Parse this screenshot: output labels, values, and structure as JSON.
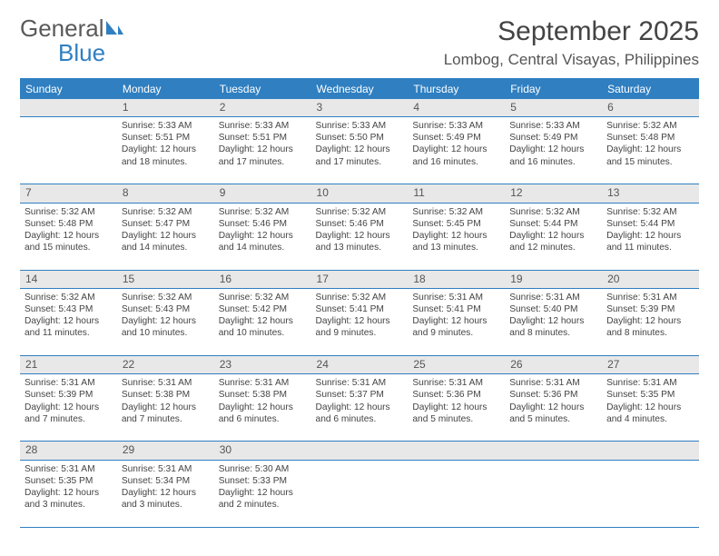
{
  "logo": {
    "word1": "General",
    "word2": "Blue"
  },
  "header": {
    "month_title": "September 2025",
    "location": "Lombog, Central Visayas, Philippines"
  },
  "colors": {
    "header_bg": "#2f7fc1",
    "header_text": "#ffffff",
    "daynum_bg": "#e8e8e8",
    "border": "#2f7fc1",
    "body_text": "#444444"
  },
  "weekdays": [
    "Sunday",
    "Monday",
    "Tuesday",
    "Wednesday",
    "Thursday",
    "Friday",
    "Saturday"
  ],
  "weeks": [
    {
      "nums": [
        "",
        "1",
        "2",
        "3",
        "4",
        "5",
        "6"
      ],
      "cells": [
        null,
        {
          "sunrise": "Sunrise: 5:33 AM",
          "sunset": "Sunset: 5:51 PM",
          "dl1": "Daylight: 12 hours",
          "dl2": "and 18 minutes."
        },
        {
          "sunrise": "Sunrise: 5:33 AM",
          "sunset": "Sunset: 5:51 PM",
          "dl1": "Daylight: 12 hours",
          "dl2": "and 17 minutes."
        },
        {
          "sunrise": "Sunrise: 5:33 AM",
          "sunset": "Sunset: 5:50 PM",
          "dl1": "Daylight: 12 hours",
          "dl2": "and 17 minutes."
        },
        {
          "sunrise": "Sunrise: 5:33 AM",
          "sunset": "Sunset: 5:49 PM",
          "dl1": "Daylight: 12 hours",
          "dl2": "and 16 minutes."
        },
        {
          "sunrise": "Sunrise: 5:33 AM",
          "sunset": "Sunset: 5:49 PM",
          "dl1": "Daylight: 12 hours",
          "dl2": "and 16 minutes."
        },
        {
          "sunrise": "Sunrise: 5:32 AM",
          "sunset": "Sunset: 5:48 PM",
          "dl1": "Daylight: 12 hours",
          "dl2": "and 15 minutes."
        }
      ]
    },
    {
      "nums": [
        "7",
        "8",
        "9",
        "10",
        "11",
        "12",
        "13"
      ],
      "cells": [
        {
          "sunrise": "Sunrise: 5:32 AM",
          "sunset": "Sunset: 5:48 PM",
          "dl1": "Daylight: 12 hours",
          "dl2": "and 15 minutes."
        },
        {
          "sunrise": "Sunrise: 5:32 AM",
          "sunset": "Sunset: 5:47 PM",
          "dl1": "Daylight: 12 hours",
          "dl2": "and 14 minutes."
        },
        {
          "sunrise": "Sunrise: 5:32 AM",
          "sunset": "Sunset: 5:46 PM",
          "dl1": "Daylight: 12 hours",
          "dl2": "and 14 minutes."
        },
        {
          "sunrise": "Sunrise: 5:32 AM",
          "sunset": "Sunset: 5:46 PM",
          "dl1": "Daylight: 12 hours",
          "dl2": "and 13 minutes."
        },
        {
          "sunrise": "Sunrise: 5:32 AM",
          "sunset": "Sunset: 5:45 PM",
          "dl1": "Daylight: 12 hours",
          "dl2": "and 13 minutes."
        },
        {
          "sunrise": "Sunrise: 5:32 AM",
          "sunset": "Sunset: 5:44 PM",
          "dl1": "Daylight: 12 hours",
          "dl2": "and 12 minutes."
        },
        {
          "sunrise": "Sunrise: 5:32 AM",
          "sunset": "Sunset: 5:44 PM",
          "dl1": "Daylight: 12 hours",
          "dl2": "and 11 minutes."
        }
      ]
    },
    {
      "nums": [
        "14",
        "15",
        "16",
        "17",
        "18",
        "19",
        "20"
      ],
      "cells": [
        {
          "sunrise": "Sunrise: 5:32 AM",
          "sunset": "Sunset: 5:43 PM",
          "dl1": "Daylight: 12 hours",
          "dl2": "and 11 minutes."
        },
        {
          "sunrise": "Sunrise: 5:32 AM",
          "sunset": "Sunset: 5:43 PM",
          "dl1": "Daylight: 12 hours",
          "dl2": "and 10 minutes."
        },
        {
          "sunrise": "Sunrise: 5:32 AM",
          "sunset": "Sunset: 5:42 PM",
          "dl1": "Daylight: 12 hours",
          "dl2": "and 10 minutes."
        },
        {
          "sunrise": "Sunrise: 5:32 AM",
          "sunset": "Sunset: 5:41 PM",
          "dl1": "Daylight: 12 hours",
          "dl2": "and 9 minutes."
        },
        {
          "sunrise": "Sunrise: 5:31 AM",
          "sunset": "Sunset: 5:41 PM",
          "dl1": "Daylight: 12 hours",
          "dl2": "and 9 minutes."
        },
        {
          "sunrise": "Sunrise: 5:31 AM",
          "sunset": "Sunset: 5:40 PM",
          "dl1": "Daylight: 12 hours",
          "dl2": "and 8 minutes."
        },
        {
          "sunrise": "Sunrise: 5:31 AM",
          "sunset": "Sunset: 5:39 PM",
          "dl1": "Daylight: 12 hours",
          "dl2": "and 8 minutes."
        }
      ]
    },
    {
      "nums": [
        "21",
        "22",
        "23",
        "24",
        "25",
        "26",
        "27"
      ],
      "cells": [
        {
          "sunrise": "Sunrise: 5:31 AM",
          "sunset": "Sunset: 5:39 PM",
          "dl1": "Daylight: 12 hours",
          "dl2": "and 7 minutes."
        },
        {
          "sunrise": "Sunrise: 5:31 AM",
          "sunset": "Sunset: 5:38 PM",
          "dl1": "Daylight: 12 hours",
          "dl2": "and 7 minutes."
        },
        {
          "sunrise": "Sunrise: 5:31 AM",
          "sunset": "Sunset: 5:38 PM",
          "dl1": "Daylight: 12 hours",
          "dl2": "and 6 minutes."
        },
        {
          "sunrise": "Sunrise: 5:31 AM",
          "sunset": "Sunset: 5:37 PM",
          "dl1": "Daylight: 12 hours",
          "dl2": "and 6 minutes."
        },
        {
          "sunrise": "Sunrise: 5:31 AM",
          "sunset": "Sunset: 5:36 PM",
          "dl1": "Daylight: 12 hours",
          "dl2": "and 5 minutes."
        },
        {
          "sunrise": "Sunrise: 5:31 AM",
          "sunset": "Sunset: 5:36 PM",
          "dl1": "Daylight: 12 hours",
          "dl2": "and 5 minutes."
        },
        {
          "sunrise": "Sunrise: 5:31 AM",
          "sunset": "Sunset: 5:35 PM",
          "dl1": "Daylight: 12 hours",
          "dl2": "and 4 minutes."
        }
      ]
    },
    {
      "nums": [
        "28",
        "29",
        "30",
        "",
        "",
        "",
        ""
      ],
      "cells": [
        {
          "sunrise": "Sunrise: 5:31 AM",
          "sunset": "Sunset: 5:35 PM",
          "dl1": "Daylight: 12 hours",
          "dl2": "and 3 minutes."
        },
        {
          "sunrise": "Sunrise: 5:31 AM",
          "sunset": "Sunset: 5:34 PM",
          "dl1": "Daylight: 12 hours",
          "dl2": "and 3 minutes."
        },
        {
          "sunrise": "Sunrise: 5:30 AM",
          "sunset": "Sunset: 5:33 PM",
          "dl1": "Daylight: 12 hours",
          "dl2": "and 2 minutes."
        },
        null,
        null,
        null,
        null
      ]
    }
  ]
}
